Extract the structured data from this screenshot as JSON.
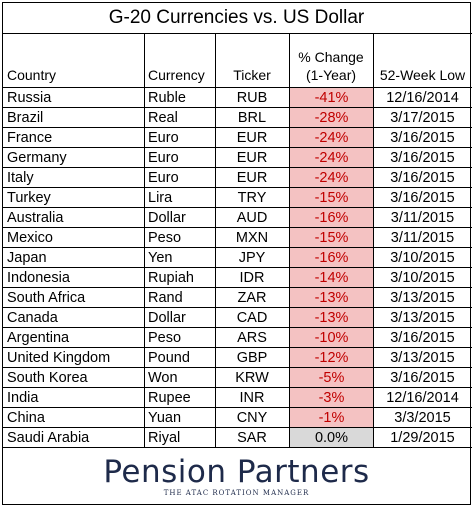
{
  "chart_data": {
    "type": "table",
    "title": "G-20 Currencies vs. US Dollar",
    "columns": [
      "Country",
      "Currency",
      "Ticker",
      "% Change (1-Year)",
      "52-Week Low"
    ],
    "header": {
      "country": "Country",
      "currency": "Currency",
      "ticker": "Ticker",
      "change_line1": "% Change",
      "change_line2": "(1-Year)",
      "low": "52-Week Low"
    },
    "rows": [
      {
        "country": "Russia",
        "currency": "Ruble",
        "ticker": "RUB",
        "change": "-41%",
        "low": "12/16/2014"
      },
      {
        "country": "Brazil",
        "currency": "Real",
        "ticker": "BRL",
        "change": "-28%",
        "low": "3/17/2015"
      },
      {
        "country": "France",
        "currency": "Euro",
        "ticker": "EUR",
        "change": "-24%",
        "low": "3/16/2015"
      },
      {
        "country": "Germany",
        "currency": "Euro",
        "ticker": "EUR",
        "change": "-24%",
        "low": "3/16/2015"
      },
      {
        "country": "Italy",
        "currency": "Euro",
        "ticker": "EUR",
        "change": "-24%",
        "low": "3/16/2015"
      },
      {
        "country": "Turkey",
        "currency": "Lira",
        "ticker": "TRY",
        "change": "-15%",
        "low": "3/16/2015"
      },
      {
        "country": "Australia",
        "currency": "Dollar",
        "ticker": "AUD",
        "change": "-16%",
        "low": "3/11/2015"
      },
      {
        "country": "Mexico",
        "currency": "Peso",
        "ticker": "MXN",
        "change": "-15%",
        "low": "3/11/2015"
      },
      {
        "country": "Japan",
        "currency": "Yen",
        "ticker": "JPY",
        "change": "-16%",
        "low": "3/10/2015"
      },
      {
        "country": "Indonesia",
        "currency": "Rupiah",
        "ticker": "IDR",
        "change": "-14%",
        "low": "3/10/2015"
      },
      {
        "country": "South Africa",
        "currency": "Rand",
        "ticker": "ZAR",
        "change": "-13%",
        "low": "3/13/2015"
      },
      {
        "country": "Canada",
        "currency": "Dollar",
        "ticker": "CAD",
        "change": "-13%",
        "low": "3/13/2015"
      },
      {
        "country": "Argentina",
        "currency": "Peso",
        "ticker": "ARS",
        "change": "-10%",
        "low": "3/16/2015"
      },
      {
        "country": "United Kingdom",
        "currency": "Pound",
        "ticker": "GBP",
        "change": "-12%",
        "low": "3/13/2015"
      },
      {
        "country": "South Korea",
        "currency": "Won",
        "ticker": "KRW",
        "change": "-5%",
        "low": "3/16/2015"
      },
      {
        "country": "India",
        "currency": "Rupee",
        "ticker": "INR",
        "change": "-3%",
        "low": "12/16/2014"
      },
      {
        "country": "China",
        "currency": "Yuan",
        "ticker": "CNY",
        "change": "-1%",
        "low": "3/3/2015"
      },
      {
        "country": "Saudi Arabia",
        "currency": "Riyal",
        "ticker": "SAR",
        "change": "0.0%",
        "low": "1/29/2015"
      }
    ],
    "colors": {
      "negative_fill": "#f4c2c2",
      "negative_text": "#c00000",
      "neutral_fill": "#d9d9d9"
    }
  },
  "logo": {
    "name": "Pension Partners",
    "tagline": "THE ATAC ROTATION MANAGER"
  }
}
